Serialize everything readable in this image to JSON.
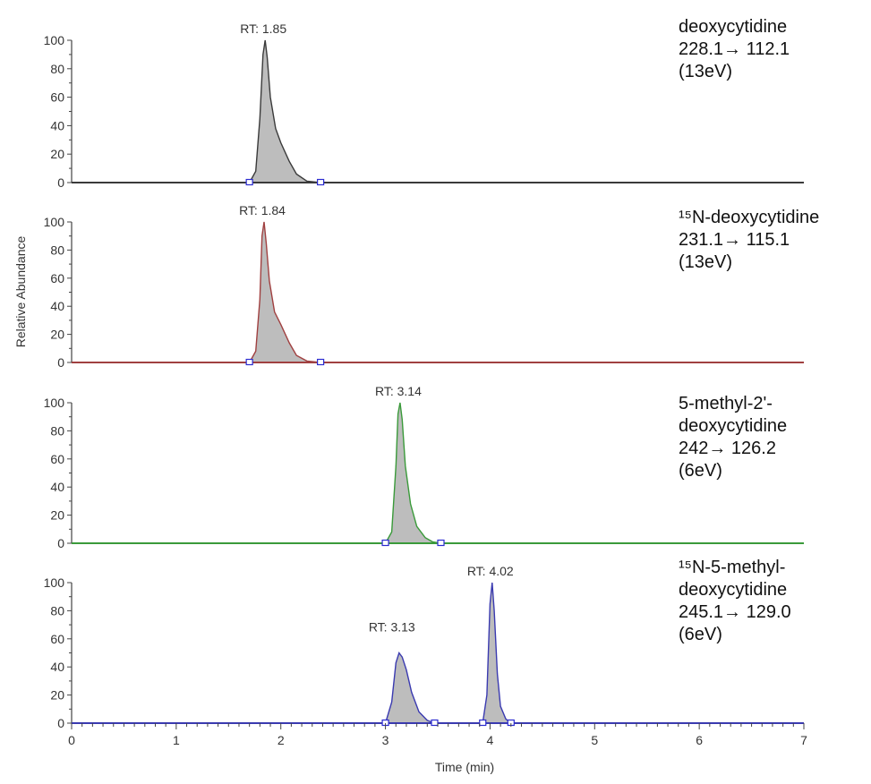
{
  "figure": {
    "ylabel": "Relative Abundance",
    "xlabel": "Time (min)"
  },
  "chart_data": {
    "type": "line",
    "xlim": [
      0,
      7
    ],
    "ylim": [
      0,
      100
    ],
    "x_ticks": [
      "0",
      "1",
      "2",
      "3",
      "4",
      "5",
      "6",
      "7"
    ],
    "y_ticks": [
      "0",
      "20",
      "40",
      "60",
      "80",
      "100"
    ],
    "grid": false,
    "panels": [
      {
        "color": "#3a3a3a",
        "fill": "#bdbdbd",
        "peaks": [
          {
            "label": "RT: 1.85",
            "x": [
              1.7,
              1.76,
              1.8,
              1.83,
              1.85,
              1.87,
              1.9,
              1.95,
              2.0,
              2.08,
              2.15,
              2.25,
              2.38
            ],
            "y": [
              0,
              8,
              45,
              90,
              100,
              88,
              60,
              38,
              28,
              15,
              6,
              1,
              0
            ]
          }
        ],
        "baseline_markers": [
          1.7,
          2.38
        ],
        "annotation": [
          "deoxycytidine",
          "228.1→ 112.1",
          "(13eV)"
        ]
      },
      {
        "color": "#a04040",
        "fill": "#bdbdbd",
        "peaks": [
          {
            "label": "RT: 1.84",
            "x": [
              1.7,
              1.76,
              1.8,
              1.82,
              1.84,
              1.86,
              1.89,
              1.94,
              2.0,
              2.08,
              2.15,
              2.25,
              2.38
            ],
            "y": [
              0,
              8,
              45,
              90,
              100,
              85,
              58,
              36,
              27,
              14,
              5,
              1,
              0
            ]
          }
        ],
        "baseline_markers": [
          1.7,
          2.38
        ],
        "annotation": [
          "¹⁵N-deoxycytidine",
          "231.1→ 115.1",
          "(13eV)"
        ]
      },
      {
        "color": "#3a9a3a",
        "fill": "#bdbdbd",
        "peaks": [
          {
            "label": "RT: 3.14",
            "x": [
              3.0,
              3.06,
              3.1,
              3.12,
              3.14,
              3.16,
              3.19,
              3.24,
              3.3,
              3.38,
              3.45,
              3.53
            ],
            "y": [
              0,
              8,
              55,
              92,
              100,
              88,
              55,
              28,
              12,
              4,
              1,
              0
            ]
          }
        ],
        "baseline_markers": [
          3.0,
          3.53
        ],
        "annotation": [
          "5-methyl-2'-",
          "deoxycytidine",
          "242→ 126.2",
          "(6eV)"
        ]
      },
      {
        "color": "#3a3ab0",
        "fill": "#bdbdbd",
        "peaks": [
          {
            "label": "RT: 3.13",
            "x": [
              3.0,
              3.06,
              3.1,
              3.13,
              3.16,
              3.2,
              3.25,
              3.32,
              3.4,
              3.47
            ],
            "y": [
              0,
              15,
              43,
              50,
              47,
              38,
              22,
              8,
              2,
              0
            ]
          },
          {
            "label": "RT: 4.02",
            "x": [
              3.93,
              3.97,
              4.0,
              4.02,
              4.04,
              4.07,
              4.1,
              4.15,
              4.2
            ],
            "y": [
              0,
              20,
              85,
              100,
              80,
              35,
              12,
              3,
              0
            ]
          }
        ],
        "baseline_markers": [
          3.0,
          3.47,
          3.93,
          4.2
        ],
        "annotation": [
          "¹⁵N-5-methyl-",
          "deoxycytidine",
          "245.1→ 129.0",
          "(6eV)"
        ]
      }
    ]
  }
}
